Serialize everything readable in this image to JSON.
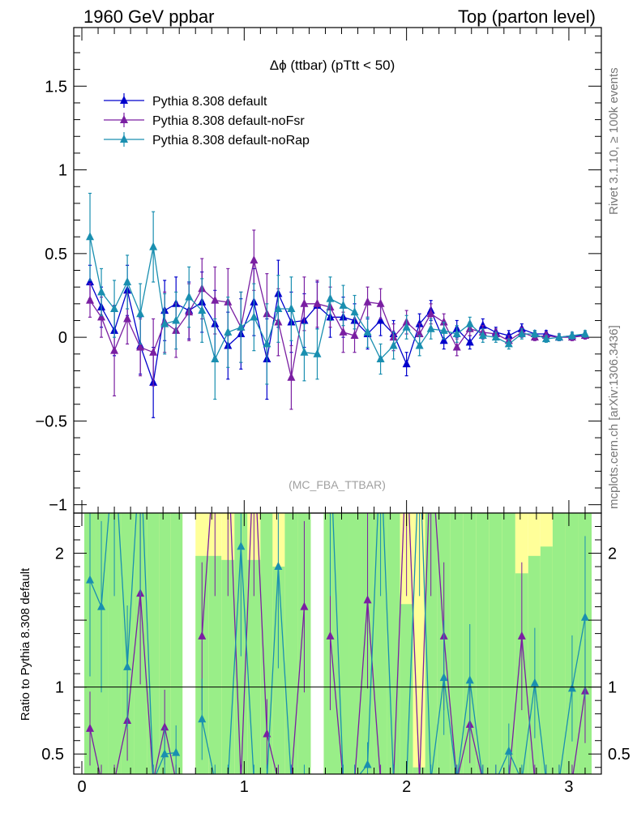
{
  "header": {
    "left": "1960 GeV ppbar",
    "right": "Top (parton level)"
  },
  "side_text": {
    "rivet": "Rivet 3.1.10, ≥ 100k events",
    "mcplots": "mcplots.cern.ch [arXiv:1306.3436]"
  },
  "chart_data": [
    {
      "type": "line",
      "title": "Δϕ (ttbar) (pTtt < 50)",
      "watermark": "(MC_FBA_TTBAR)",
      "xlim": [
        -0.05,
        3.2
      ],
      "ylim": [
        -1.05,
        1.85
      ],
      "yticks": [
        -1,
        -0.5,
        0,
        0.5,
        1,
        1.5
      ],
      "ytick_labels": [
        "−1",
        "−0.5",
        "0",
        "0.5",
        "1",
        "1.5"
      ],
      "xticks": [
        0,
        1,
        2,
        3
      ],
      "legend_position": "top-left",
      "x": [
        0.05,
        0.12,
        0.2,
        0.28,
        0.36,
        0.44,
        0.51,
        0.58,
        0.66,
        0.74,
        0.82,
        0.9,
        0.98,
        1.06,
        1.14,
        1.21,
        1.29,
        1.37,
        1.45,
        1.53,
        1.61,
        1.68,
        1.76,
        1.84,
        1.92,
        2.0,
        2.08,
        2.15,
        2.23,
        2.31,
        2.39,
        2.47,
        2.55,
        2.63,
        2.71,
        2.79,
        2.86,
        2.94,
        3.02,
        3.1
      ],
      "series": [
        {
          "name": "Pythia 8.308 default",
          "color": "#0000cc",
          "y": [
            0.33,
            0.18,
            0.04,
            0.28,
            -0.05,
            -0.27,
            0.16,
            0.2,
            0.16,
            0.21,
            0.08,
            -0.05,
            0.02,
            0.21,
            -0.13,
            0.26,
            0.09,
            0.1,
            0.19,
            0.12,
            0.12,
            0.1,
            0.02,
            0.1,
            0.02,
            -0.16,
            0.08,
            0.16,
            -0.02,
            0.05,
            -0.03,
            0.07,
            0.03,
            0.01,
            0.05,
            0.02,
            0.02,
            0.0,
            0.01,
            0.01
          ],
          "err": [
            0.1,
            0.12,
            0.15,
            0.15,
            0.17,
            0.21,
            0.18,
            0.16,
            0.17,
            0.18,
            0.2,
            0.2,
            0.21,
            0.2,
            0.24,
            0.2,
            0.18,
            0.16,
            0.14,
            0.12,
            0.12,
            0.1,
            0.09,
            0.09,
            0.08,
            0.07,
            0.06,
            0.06,
            0.05,
            0.05,
            0.04,
            0.04,
            0.03,
            0.03,
            0.03,
            0.02,
            0.02,
            0.02,
            0.02,
            0.02
          ]
        },
        {
          "name": "Pythia 8.308 default-noFsr",
          "color": "#7a1fa2",
          "y": [
            0.22,
            0.12,
            -0.08,
            0.11,
            -0.06,
            -0.09,
            0.09,
            0.04,
            0.15,
            0.29,
            0.22,
            0.21,
            0.06,
            0.46,
            0.14,
            0.09,
            -0.24,
            0.2,
            0.2,
            0.18,
            0.03,
            0.01,
            0.21,
            0.2,
            0.0,
            0.09,
            0.02,
            0.14,
            0.09,
            -0.06,
            0.05,
            0.03,
            0.02,
            -0.02,
            0.03,
            0.0,
            0.01,
            0.0,
            0.0,
            0.01
          ],
          "err": [
            0.1,
            0.12,
            0.27,
            0.15,
            0.17,
            0.2,
            0.18,
            0.16,
            0.17,
            0.18,
            0.2,
            0.2,
            0.21,
            0.18,
            0.24,
            0.2,
            0.19,
            0.16,
            0.14,
            0.12,
            0.12,
            0.1,
            0.09,
            0.09,
            0.08,
            0.07,
            0.06,
            0.06,
            0.05,
            0.05,
            0.04,
            0.04,
            0.03,
            0.03,
            0.03,
            0.02,
            0.02,
            0.02,
            0.02,
            0.02
          ]
        },
        {
          "name": "Pythia 8.308 default-noRap",
          "color": "#1a8fb0",
          "y": [
            0.6,
            0.27,
            0.17,
            0.33,
            0.14,
            0.54,
            0.08,
            0.1,
            0.24,
            0.16,
            -0.13,
            0.03,
            0.06,
            0.12,
            -0.04,
            0.17,
            0.17,
            -0.09,
            -0.1,
            0.23,
            0.19,
            0.15,
            0.03,
            -0.13,
            -0.05,
            0.06,
            -0.05,
            0.05,
            0.04,
            0.02,
            0.08,
            0.01,
            0.0,
            -0.04,
            0.02,
            0.02,
            -0.01,
            0.0,
            0.01,
            0.02
          ],
          "err": [
            0.26,
            0.14,
            0.17,
            0.16,
            0.18,
            0.21,
            0.18,
            0.17,
            0.18,
            0.19,
            0.24,
            0.21,
            0.21,
            0.2,
            0.24,
            0.2,
            0.19,
            0.17,
            0.15,
            0.13,
            0.12,
            0.1,
            0.09,
            0.09,
            0.08,
            0.07,
            0.06,
            0.06,
            0.05,
            0.05,
            0.04,
            0.04,
            0.03,
            0.03,
            0.03,
            0.02,
            0.02,
            0.02,
            0.02,
            0.02
          ]
        }
      ]
    },
    {
      "type": "line",
      "ylabel": "Ratio to Pythia 8.308 default",
      "xlim": [
        -0.05,
        3.2
      ],
      "ylim": [
        0.35,
        2.3
      ],
      "yticks": [
        0.5,
        1,
        2
      ],
      "ytick_labels": [
        "0.5",
        "1",
        "2"
      ],
      "xticks": [
        0,
        1,
        2,
        3
      ],
      "xtick_labels": [
        "0",
        "1",
        "2",
        "3"
      ],
      "reference_line": 1,
      "band_colors": {
        "inner": "#99ee88",
        "outer": "#ffff99"
      },
      "band_lo": [
        0.3,
        0.3,
        0.3,
        0.3,
        0.3,
        0.3,
        0.3,
        0.3,
        null,
        0.3,
        0.3,
        0.3,
        0.3,
        0.3,
        0.3,
        0.3,
        0.3,
        0.3,
        null,
        0.3,
        0.3,
        0.3,
        0.3,
        0.3,
        0.3,
        0.3,
        0.3,
        0.3,
        0.3,
        0.3,
        0.3,
        0.3,
        0.3,
        0.3,
        0.3,
        0.3,
        0.3,
        0.3,
        0.3,
        0.3
      ],
      "band_hi_inner": [
        2.3,
        2.3,
        2.3,
        2.3,
        2.3,
        2.3,
        2.3,
        2.3,
        null,
        1.98,
        1.98,
        1.95,
        2.3,
        1.95,
        2.3,
        1.9,
        2.3,
        2.3,
        null,
        2.3,
        2.3,
        2.3,
        2.3,
        2.3,
        2.3,
        1.62,
        0.4,
        2.3,
        2.3,
        2.3,
        2.3,
        2.3,
        2.3,
        2.3,
        1.85,
        1.98,
        2.05,
        2.3,
        2.3,
        2.3
      ],
      "band_hi_outer": [
        2.3,
        2.3,
        2.3,
        2.3,
        2.3,
        2.3,
        2.3,
        2.3,
        null,
        2.3,
        2.3,
        2.3,
        2.3,
        2.3,
        2.3,
        2.3,
        2.3,
        2.3,
        null,
        2.3,
        2.3,
        2.3,
        2.3,
        2.3,
        2.3,
        2.3,
        2.3,
        2.3,
        2.3,
        2.3,
        2.3,
        2.3,
        2.3,
        2.3,
        2.3,
        2.3,
        2.3,
        2.3,
        2.3,
        2.3
      ],
      "series": [
        {
          "name": "Pythia 8.308 default-noFsr",
          "color": "#7a1fa2",
          "y": [
            0.69,
            0.3,
            0.3,
            0.75,
            1.7,
            0.3,
            0.7,
            0.3,
            null,
            1.38,
            2.8,
            2.8,
            0.3,
            2.8,
            0.65,
            0.3,
            0.3,
            1.6,
            null,
            1.38,
            0.3,
            0.3,
            1.65,
            0.3,
            0.3,
            2.8,
            0.3,
            2.8,
            1.38,
            0.3,
            0.72,
            0.3,
            0.3,
            0.3,
            1.38,
            0.3,
            0.3,
            0.3,
            0.3,
            0.97
          ]
        },
        {
          "name": "Pythia 8.308 default-noRap",
          "color": "#1a8fb0",
          "y": [
            1.8,
            1.6,
            2.8,
            1.15,
            2.8,
            0.3,
            0.5,
            0.51,
            null,
            0.76,
            0.3,
            0.3,
            2.05,
            0.3,
            0.3,
            1.9,
            0.3,
            0.3,
            null,
            2.8,
            0.3,
            0.3,
            0.42,
            2.8,
            0.3,
            0.3,
            2.8,
            0.3,
            1.07,
            0.3,
            1.05,
            0.3,
            0.3,
            0.52,
            0.3,
            1.03,
            0.3,
            0.3,
            0.99,
            1.52
          ]
        }
      ]
    }
  ]
}
